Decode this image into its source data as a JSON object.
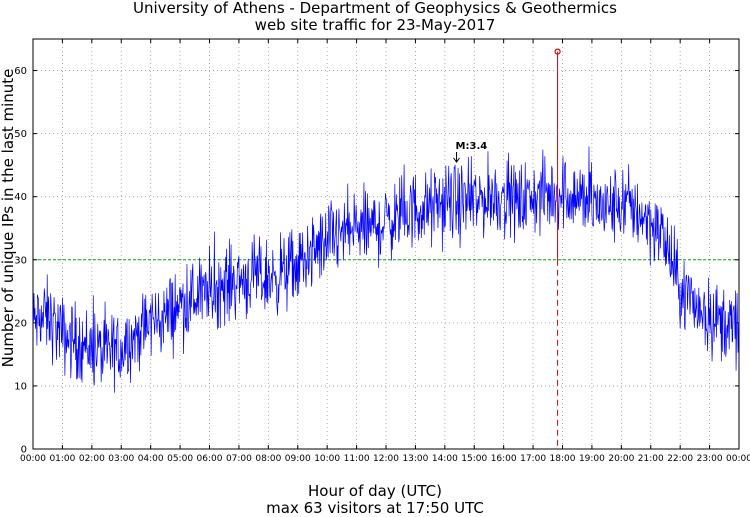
{
  "chart_data": {
    "type": "line",
    "title": "University of Athens - Department of Geophysics & Geothermics",
    "subtitle": "web site traffic for 23-May-2017",
    "xlabel": "Hour of day (UTC)",
    "footer": "max 63 visitors at 17:50 UTC",
    "ylabel": "Number of unique IPs in the last minute",
    "x_ticks": [
      "00:00",
      "01:00",
      "02:00",
      "03:00",
      "04:00",
      "05:00",
      "06:00",
      "07:00",
      "08:00",
      "09:00",
      "10:00",
      "11:00",
      "12:00",
      "13:00",
      "14:00",
      "15:00",
      "16:00",
      "17:00",
      "18:00",
      "19:00",
      "20:00",
      "21:00",
      "22:00",
      "23:00",
      "00:00"
    ],
    "xlim_hours": [
      0,
      24
    ],
    "ylim": [
      0,
      65
    ],
    "y_ticks": [
      0,
      10,
      20,
      30,
      40,
      50,
      60
    ],
    "grid": true,
    "reference_line": {
      "y": 30,
      "color": "#00aa00",
      "style": "dashed"
    },
    "max_marker": {
      "hour": 17.833,
      "value": 63,
      "color": "#dd0000"
    },
    "annotation": {
      "text": "M:3.4",
      "hour": 14.5,
      "value": 45.5
    },
    "series": [
      {
        "color": "#0000ff",
        "hours": [
          0,
          0.5,
          1,
          1.5,
          2,
          2.5,
          3,
          3.5,
          4,
          4.5,
          5,
          5.5,
          6,
          6.5,
          7,
          7.5,
          8,
          8.5,
          9,
          9.5,
          10,
          10.5,
          11,
          11.5,
          12,
          12.5,
          13,
          13.5,
          14,
          14.5,
          15,
          15.5,
          16,
          16.5,
          17,
          17.5,
          18,
          18.5,
          19,
          19.5,
          20,
          20.5,
          21,
          21.5,
          22,
          22.5,
          23,
          23.5,
          24
        ],
        "values": [
          20,
          21,
          18,
          17,
          16,
          15,
          16,
          18,
          20,
          21,
          23,
          24,
          25,
          26,
          27,
          27,
          27,
          28,
          29,
          31,
          33,
          34,
          35,
          35,
          36,
          37,
          38,
          38,
          39,
          39,
          39,
          40,
          40,
          39,
          40,
          40,
          41,
          40,
          39,
          38,
          39,
          38,
          36,
          33,
          25,
          23,
          21,
          20,
          19
        ],
        "noise_amplitude": 6
      }
    ]
  }
}
